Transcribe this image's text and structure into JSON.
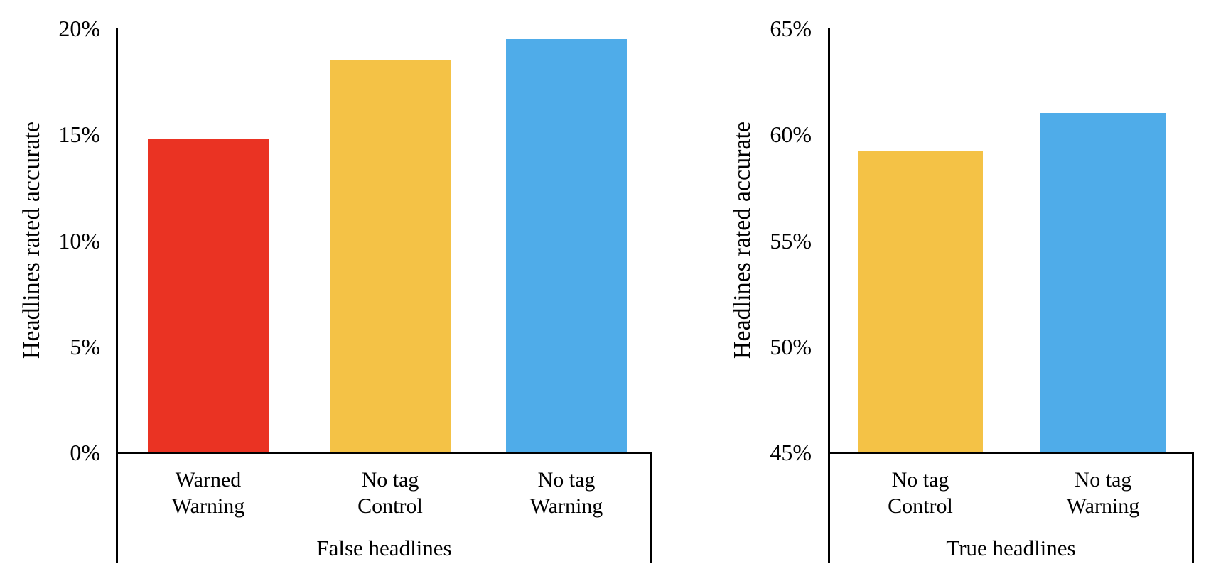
{
  "figure": {
    "background": "#ffffff",
    "text_color": "#000000",
    "axis_color": "#000000"
  },
  "chart_data": [
    {
      "type": "bar",
      "panel": "false-headlines",
      "title": "",
      "xlabel": "False headlines",
      "ylabel": "Headlines rated accurate",
      "ylim": [
        0,
        20
      ],
      "yticks": [
        0,
        5,
        10,
        15,
        20
      ],
      "ytick_labels": [
        "0%",
        "5%",
        "10%",
        "15%",
        "20%"
      ],
      "grid": false,
      "legend": null,
      "categories": [
        [
          "Warned",
          "Warning"
        ],
        [
          "No tag",
          "Control"
        ],
        [
          "No tag",
          "Warning"
        ]
      ],
      "values": [
        14.8,
        18.5,
        19.5
      ],
      "bar_colors": [
        "#ea3323",
        "#f4c246",
        "#4face9"
      ]
    },
    {
      "type": "bar",
      "panel": "true-headlines",
      "title": "",
      "xlabel": "True headlines",
      "ylabel": "Headlines rated accurate",
      "ylim": [
        45,
        65
      ],
      "yticks": [
        45,
        50,
        55,
        60,
        65
      ],
      "ytick_labels": [
        "45%",
        "50%",
        "55%",
        "60%",
        "65%"
      ],
      "grid": false,
      "legend": null,
      "categories": [
        [
          "No tag",
          "Control"
        ],
        [
          "No tag",
          "Warning"
        ]
      ],
      "values": [
        59.2,
        61.0
      ],
      "bar_colors": [
        "#f4c246",
        "#4face9"
      ]
    }
  ]
}
